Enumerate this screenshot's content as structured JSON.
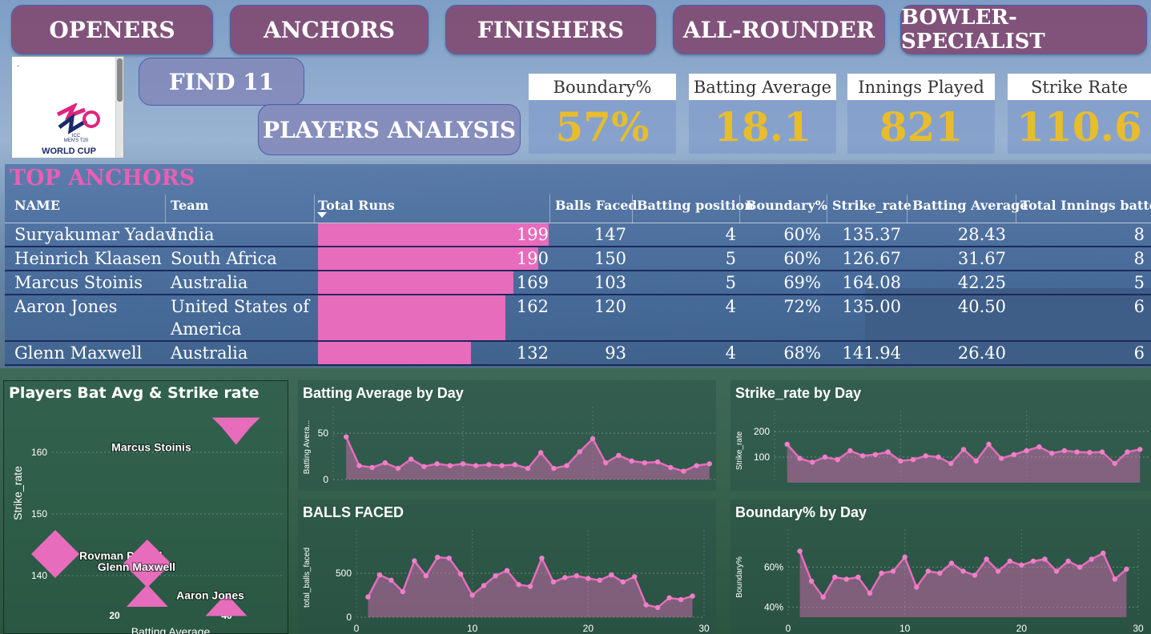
{
  "nav": {
    "openers": "OPENERS",
    "anchors": "ANCHORS",
    "finishers": "FINISHERS",
    "all_rounder": "ALL-ROUNDER",
    "bowler_specialist": "BOWLER-SPECIALIST",
    "find11": "FIND 11",
    "players_analysis": "PLAYERS ANALYSIS"
  },
  "logo": {
    "dot": ".",
    "line1": "ICC",
    "line2": "MEN'S T20",
    "line3": "WORLD CUP"
  },
  "kpis": [
    {
      "label": "Boundary%",
      "value": "57%"
    },
    {
      "label": "Batting Average",
      "value": "18.1"
    },
    {
      "label": "Innings Played",
      "value": "821"
    },
    {
      "label": "Strike Rate",
      "value": "110.6"
    }
  ],
  "table": {
    "title": "TOP ANCHORS",
    "headers": [
      "NAME",
      "Team",
      "Total Runs",
      "Balls Faced",
      "Batting position",
      "Boundary%",
      "Strike_rate",
      "Batting Average",
      "Total Innings batted"
    ],
    "rows": [
      {
        "name": "Suryakumar Yadav",
        "team": "India",
        "runs": 199,
        "runs_text": "199",
        "balls": "147",
        "pos": "4",
        "boundary": "60%",
        "sr": "135.37",
        "avg": "28.43",
        "innings": "8"
      },
      {
        "name": "Heinrich Klaasen",
        "team": "South Africa",
        "runs": 190,
        "runs_text": "190",
        "balls": "150",
        "pos": "5",
        "boundary": "60%",
        "sr": "126.67",
        "avg": "31.67",
        "innings": "8"
      },
      {
        "name": "Marcus Stoinis",
        "team": "Australia",
        "runs": 169,
        "runs_text": "169",
        "balls": "103",
        "pos": "5",
        "boundary": "69%",
        "sr": "164.08",
        "avg": "42.25",
        "innings": "5"
      },
      {
        "name": "Aaron Jones",
        "team": "United States of",
        "team2": "America",
        "runs": 162,
        "runs_text": "162",
        "balls": "120",
        "pos": "4",
        "boundary": "72%",
        "sr": "135.00",
        "avg": "40.50",
        "innings": "6"
      },
      {
        "name": "Glenn Maxwell",
        "team": "Australia",
        "runs": 132,
        "runs_text": "132",
        "balls": "93",
        "pos": "4",
        "boundary": "68%",
        "sr": "141.94",
        "avg": "26.40",
        "innings": "6"
      }
    ]
  },
  "colors": {
    "accent_pink": "#e76cbc",
    "kpi_gold": "#e8bd2c",
    "title_pink": "#e85fb3",
    "nav_bg": "#803c64"
  },
  "chart_data": [
    {
      "type": "scatter",
      "title": "Players Bat Avg & Strike rate",
      "xlabel": "Batting Average",
      "ylabel": "Strike_rate",
      "xticks": [
        "20",
        "40"
      ],
      "yticks": [
        "140",
        "150",
        "160"
      ],
      "points": [
        {
          "label": "Marcus Stoinis",
          "x": 42.25,
          "y": 164.08,
          "shape": "diamond"
        },
        {
          "label": "Rovman Powell",
          "x": 10,
          "y": 143.5,
          "shape": "diamond"
        },
        {
          "label": "Aaron Jones",
          "x": 40.5,
          "y": 135.0,
          "shape": "triangle"
        },
        {
          "label": "Glenn Maxwell",
          "x": 26.4,
          "y": 141.94,
          "shape": "diamond"
        },
        {
          "label": "",
          "x": 26.4,
          "y": 136.5,
          "shape": "triangle"
        }
      ]
    },
    {
      "type": "area",
      "title": "Batting Average by Day",
      "ylabel": "Batting Avera...",
      "yticks": [
        "0",
        "50"
      ],
      "ylim": [
        0,
        70
      ],
      "x": [
        1,
        2,
        3,
        4,
        5,
        6,
        7,
        8,
        9,
        10,
        11,
        12,
        13,
        14,
        15,
        16,
        17,
        18,
        19,
        20,
        21,
        22,
        23,
        24,
        25,
        26,
        27,
        28,
        29
      ],
      "values": [
        46,
        15,
        13,
        18,
        12,
        22,
        14,
        17,
        15,
        17,
        15,
        16,
        15,
        16,
        12,
        29,
        12,
        15,
        30,
        44,
        18,
        26,
        20,
        18,
        19,
        13,
        9,
        15,
        17
      ]
    },
    {
      "type": "area",
      "title": "Strike_rate by Day",
      "ylabel": "Strike_rate",
      "yticks": [
        "100",
        "200"
      ],
      "ylim": [
        0,
        250
      ],
      "x": [
        1,
        2,
        3,
        4,
        5,
        6,
        7,
        8,
        9,
        10,
        11,
        12,
        13,
        14,
        15,
        16,
        17,
        18,
        19,
        20,
        21,
        22,
        23,
        24,
        25,
        26,
        27,
        28,
        29
      ],
      "values": [
        150,
        95,
        80,
        100,
        90,
        125,
        105,
        110,
        120,
        85,
        90,
        105,
        100,
        75,
        130,
        85,
        150,
        95,
        110,
        125,
        140,
        115,
        125,
        120,
        118,
        120,
        75,
        120,
        130
      ]
    },
    {
      "type": "area",
      "title": "BALLS FACED",
      "ylabel": "total_balls_faced",
      "xticks": [
        "0",
        "10",
        "20",
        "30"
      ],
      "yticks": [
        "0",
        "500"
      ],
      "ylim": [
        0,
        900
      ],
      "x": [
        1,
        2,
        3,
        4,
        5,
        6,
        7,
        8,
        9,
        10,
        11,
        12,
        13,
        14,
        15,
        16,
        17,
        18,
        19,
        20,
        21,
        22,
        23,
        24,
        25,
        26,
        27,
        28,
        29
      ],
      "values": [
        230,
        480,
        420,
        290,
        640,
        470,
        680,
        670,
        490,
        250,
        360,
        470,
        530,
        370,
        350,
        670,
        400,
        450,
        470,
        440,
        420,
        480,
        400,
        460,
        140,
        110,
        220,
        200,
        240
      ]
    },
    {
      "type": "area",
      "title": "Boundary% by Day",
      "ylabel": "Boundary%",
      "xticks": [
        "0",
        "10",
        "20",
        "30"
      ],
      "yticks": [
        "40%",
        "60%"
      ],
      "ylim": [
        35,
        75
      ],
      "x": [
        1,
        2,
        3,
        4,
        5,
        6,
        7,
        8,
        9,
        10,
        11,
        12,
        13,
        14,
        15,
        16,
        17,
        18,
        19,
        20,
        21,
        22,
        23,
        24,
        25,
        26,
        27,
        28,
        29
      ],
      "values": [
        68,
        53,
        45,
        55,
        54,
        55,
        47,
        57,
        58,
        65,
        50,
        58,
        57,
        62,
        58,
        56,
        64,
        58,
        63,
        61,
        63,
        64,
        58,
        63,
        60,
        64,
        67,
        54,
        59
      ]
    }
  ]
}
